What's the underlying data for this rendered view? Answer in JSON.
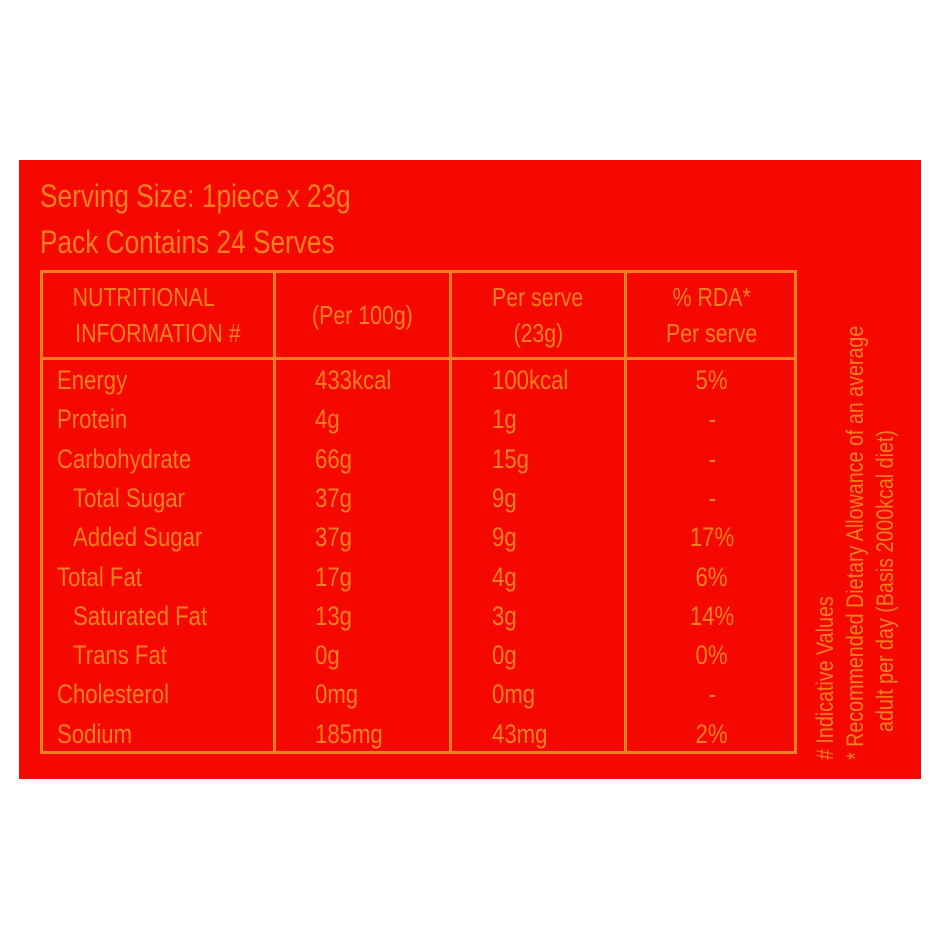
{
  "serving_size": "Serving Size: 1piece x 23g",
  "pack_contains": "Pack Contains 24 Serves",
  "colors": {
    "background": "#f50800",
    "text": "#f2801e"
  },
  "table": {
    "headers": [
      [
        "NUTRITIONAL",
        "INFORMATION #"
      ],
      [
        "(Per 100g)"
      ],
      [
        "Per serve",
        "(23g)"
      ],
      [
        "% RDA*",
        "Per serve"
      ]
    ],
    "rows": [
      {
        "name": "Energy",
        "indent": 0,
        "per100": "433kcal",
        "serve": "100kcal",
        "rda": "5%"
      },
      {
        "name": "Protein",
        "indent": 0,
        "per100": "4g",
        "serve": "1g",
        "rda": "-"
      },
      {
        "name": "Carbohydrate",
        "indent": 0,
        "per100": "66g",
        "serve": "15g",
        "rda": "-"
      },
      {
        "name": "Total Sugar",
        "indent": 1,
        "per100": "37g",
        "serve": "9g",
        "rda": "-"
      },
      {
        "name": "Added Sugar",
        "indent": 1,
        "per100": "37g",
        "serve": "9g",
        "rda": "17%"
      },
      {
        "name": "Total Fat",
        "indent": 0,
        "per100": "17g",
        "serve": "4g",
        "rda": "6%"
      },
      {
        "name": "Saturated Fat",
        "indent": 1,
        "per100": "13g",
        "serve": "3g",
        "rda": "14%"
      },
      {
        "name": "Trans Fat",
        "indent": 1,
        "per100": "0g",
        "serve": "0g",
        "rda": "0%"
      },
      {
        "name": "Cholesterol",
        "indent": 0,
        "per100": "0mg",
        "serve": "0mg",
        "rda": "-"
      },
      {
        "name": "Sodium",
        "indent": 0,
        "per100": "185mg",
        "serve": "43mg",
        "rda": "2%"
      }
    ]
  },
  "footnotes": [
    "# Indicative Values",
    "* Recommended Dietary Allowance of an average",
    "adult per day (Basis 2000kcal diet)"
  ]
}
